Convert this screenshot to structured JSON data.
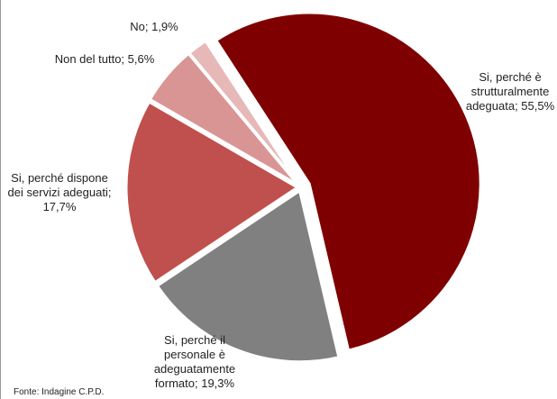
{
  "chart_data": {
    "type": "pie",
    "categories": [
      "Si, perché è strutturalmente adeguata",
      "Si, perché il personale è adeguatamente formato",
      "Si, perché dispone dei servizi adeguati",
      "Non del tutto",
      "No"
    ],
    "values": [
      55.5,
      19.3,
      17.7,
      5.6,
      1.9
    ],
    "value_labels": [
      "Si, perché è strutturalmente adeguata; 55,5%",
      "Si, perché il personale è adeguatamente formato; 19,3%",
      "Si, perché dispone dei servizi adeguati; 17,7%",
      "Non del tutto; 5,6%",
      "No; 1,9%"
    ],
    "colors": [
      "#7f0000",
      "#808080",
      "#c0504d",
      "#d99594",
      "#e6b9b8"
    ],
    "source": "Fonte: Indagine C.P.D."
  }
}
